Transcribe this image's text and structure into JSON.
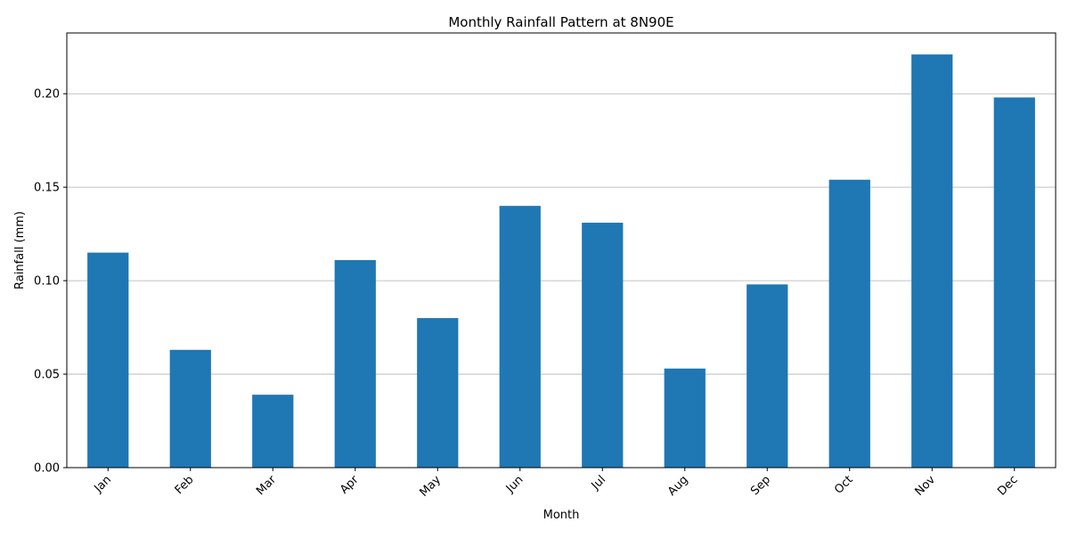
{
  "chart_data": {
    "type": "bar",
    "title": "Monthly Rainfall Pattern at 8N90E",
    "xlabel": "Month",
    "ylabel": "Rainfall (mm)",
    "categories": [
      "Jan",
      "Feb",
      "Mar",
      "Apr",
      "May",
      "Jun",
      "Jul",
      "Aug",
      "Sep",
      "Oct",
      "Nov",
      "Dec"
    ],
    "values": [
      0.115,
      0.063,
      0.039,
      0.111,
      0.08,
      0.14,
      0.131,
      0.053,
      0.098,
      0.154,
      0.221,
      0.198
    ],
    "ylim": [
      0,
      0.2325
    ],
    "yticks": [
      0.0,
      0.05,
      0.1,
      0.15,
      0.2
    ],
    "ytick_labels": [
      "0.00",
      "0.05",
      "0.10",
      "0.15",
      "0.20"
    ],
    "grid": "y",
    "legend": "none",
    "bar_color": "#1f77b4"
  }
}
